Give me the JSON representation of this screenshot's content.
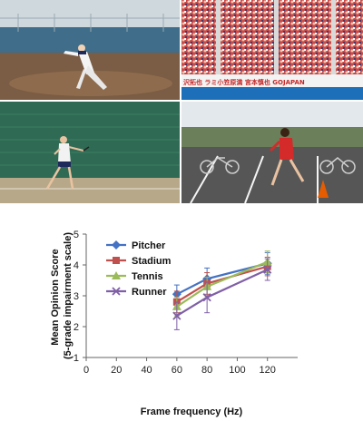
{
  "panels": [
    {
      "name": "pitcher-frame",
      "sign_text": ""
    },
    {
      "name": "stadium-frame",
      "sign_text": "沢拓也 ラミ小笠原満 宮本慎也 GOJAPAN"
    },
    {
      "name": "tennis-frame",
      "sign_text": ""
    },
    {
      "name": "runner-frame",
      "sign_text": ""
    }
  ],
  "colors": {
    "Pitcher": "#4472c4",
    "Stadium": "#c0504d",
    "Tennis": "#9bbb59",
    "Runner": "#7f5fa6"
  },
  "chart_data": {
    "type": "line",
    "title": "",
    "xlabel": "Frame frequency (Hz)",
    "ylabel_lines": [
      "Mean Opinion Score",
      "(5-grade impairment scale)"
    ],
    "x_ticks": [
      0,
      20,
      40,
      60,
      80,
      100,
      120
    ],
    "y_ticks": [
      1,
      2,
      3,
      4,
      5
    ],
    "xlim": [
      0,
      140
    ],
    "ylim": [
      1,
      5
    ],
    "x": [
      60,
      80,
      120
    ],
    "legend_position": "top-left",
    "grid": false,
    "series": [
      {
        "name": "Pitcher",
        "marker": "diamond",
        "values": [
          3.05,
          3.55,
          4.05
        ],
        "errors": [
          0.3,
          0.35,
          0.35
        ]
      },
      {
        "name": "Stadium",
        "marker": "square",
        "values": [
          2.8,
          3.4,
          3.95
        ],
        "errors": [
          0.35,
          0.35,
          0.3
        ]
      },
      {
        "name": "Tennis",
        "marker": "triangle",
        "values": [
          2.65,
          3.3,
          4.1
        ],
        "errors": [
          0.3,
          0.3,
          0.35
        ]
      },
      {
        "name": "Runner",
        "marker": "x",
        "values": [
          2.35,
          2.95,
          3.85
        ],
        "errors": [
          0.45,
          0.5,
          0.35
        ]
      }
    ]
  }
}
